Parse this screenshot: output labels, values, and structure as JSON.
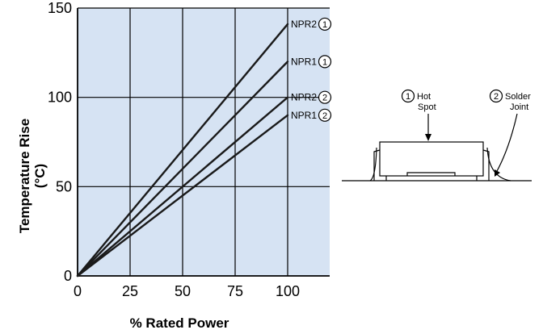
{
  "chart_data": {
    "type": "line",
    "xlabel": "% Rated Power",
    "ylabel_line1": "Temperature Rise",
    "ylabel_line2": "(°C)",
    "xlim": [
      0,
      120
    ],
    "ylim": [
      0,
      150
    ],
    "x_ticks": [
      0,
      25,
      50,
      75,
      100
    ],
    "y_ticks": [
      0,
      50,
      100,
      150
    ],
    "grid": true,
    "plot_background": "#d6e3f3",
    "line_color": "#1a1a1a",
    "series": [
      {
        "name": "NPR2",
        "marker": "1",
        "x": [
          0,
          100
        ],
        "y": [
          0,
          141
        ]
      },
      {
        "name": "NPR1",
        "marker": "1",
        "x": [
          0,
          100
        ],
        "y": [
          0,
          120
        ]
      },
      {
        "name": "NPR2",
        "marker": "2",
        "x": [
          0,
          100
        ],
        "y": [
          0,
          100
        ]
      },
      {
        "name": "NPR1",
        "marker": "2",
        "x": [
          0,
          100
        ],
        "y": [
          0,
          90
        ]
      }
    ]
  },
  "diagram": {
    "callout_1": {
      "marker": "1",
      "line1": "Hot",
      "line2": "Spot"
    },
    "callout_2": {
      "marker": "2",
      "line1": "Solder",
      "line2": "Joint"
    }
  }
}
